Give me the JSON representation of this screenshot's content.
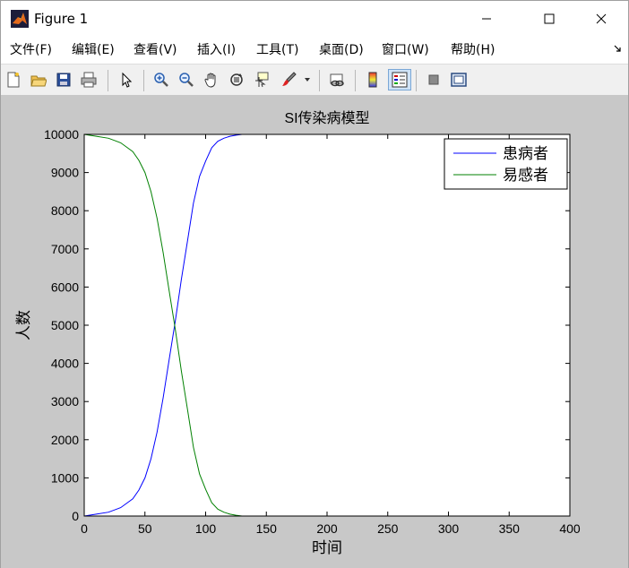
{
  "window": {
    "title": "Figure 1",
    "controls": [
      "minimize",
      "maximize",
      "close"
    ]
  },
  "menu": {
    "items": [
      {
        "label": "文件(F)"
      },
      {
        "label": "编辑(E)"
      },
      {
        "label": "查看(V)"
      },
      {
        "label": "插入(I)"
      },
      {
        "label": "工具(T)"
      },
      {
        "label": "桌面(D)"
      },
      {
        "label": "窗口(W)"
      },
      {
        "label": "帮助(H)"
      }
    ],
    "overflow_icon": "arrow-corner-icon"
  },
  "toolbar": {
    "buttons": [
      {
        "icon": "new-figure-icon"
      },
      {
        "icon": "open-file-icon"
      },
      {
        "icon": "save-icon"
      },
      {
        "icon": "print-icon"
      },
      {
        "icon": "pointer-arrow-icon"
      },
      {
        "icon": "zoom-in-icon"
      },
      {
        "icon": "zoom-out-icon"
      },
      {
        "icon": "pan-hand-icon"
      },
      {
        "icon": "rotate-3d-icon"
      },
      {
        "icon": "data-cursor-icon"
      },
      {
        "icon": "brush-icon"
      },
      {
        "icon": "link-plot-icon"
      },
      {
        "icon": "colorbar-icon"
      },
      {
        "icon": "legend-icon"
      },
      {
        "icon": "hide-plot-tools-icon"
      },
      {
        "icon": "show-plot-tools-icon"
      }
    ]
  },
  "chart_data": {
    "type": "line",
    "title": "SI传染病模型",
    "xlabel": "时间",
    "ylabel": "人数",
    "xlim": [
      0,
      400
    ],
    "ylim": [
      0,
      10000
    ],
    "xticks": [
      0,
      50,
      100,
      150,
      200,
      250,
      300,
      350,
      400
    ],
    "yticks": [
      0,
      1000,
      2000,
      3000,
      4000,
      5000,
      6000,
      7000,
      8000,
      9000,
      10000
    ],
    "grid": false,
    "legend_position": "top-right",
    "colors": {
      "infected": "#0000ff",
      "susceptible": "#008000"
    },
    "series": [
      {
        "name": "患病者",
        "color": "#0000ff",
        "x": [
          0,
          10,
          20,
          30,
          40,
          45,
          50,
          55,
          60,
          65,
          70,
          75,
          80,
          85,
          90,
          95,
          100,
          105,
          110,
          115,
          120,
          125,
          130,
          140,
          150,
          200,
          250,
          300,
          365
        ],
        "y": [
          0,
          50,
          100,
          220,
          450,
          680,
          1000,
          1500,
          2200,
          3100,
          4100,
          5100,
          6200,
          7200,
          8200,
          8900,
          9300,
          9650,
          9820,
          9900,
          9950,
          9980,
          10000,
          10000,
          10000,
          10000,
          10000,
          10000,
          10000
        ]
      },
      {
        "name": "易感者",
        "color": "#008000",
        "x": [
          0,
          10,
          20,
          30,
          40,
          45,
          50,
          55,
          60,
          65,
          70,
          75,
          80,
          85,
          90,
          95,
          100,
          105,
          110,
          115,
          120,
          125,
          130,
          140,
          150,
          200,
          250,
          300,
          365
        ],
        "y": [
          10000,
          9950,
          9900,
          9780,
          9550,
          9320,
          9000,
          8500,
          7800,
          6900,
          5900,
          4900,
          3800,
          2800,
          1800,
          1100,
          700,
          350,
          180,
          100,
          50,
          20,
          0,
          0,
          0,
          0,
          0,
          0,
          0
        ]
      }
    ]
  }
}
